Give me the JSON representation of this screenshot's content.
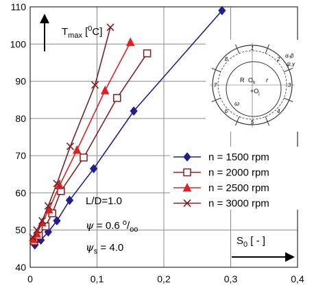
{
  "chart_data": {
    "type": "line",
    "xlim": [
      0,
      0.4
    ],
    "ylim": [
      40,
      110
    ],
    "x_ticks": [
      "0",
      "0,1",
      "0,2",
      "0,3",
      "0,4"
    ],
    "y_ticks": [
      "40",
      "50",
      "60",
      "70",
      "80",
      "90",
      "100",
      "110"
    ],
    "grid": true,
    "ylabel": {
      "main": "T",
      "sub": "max",
      "rest": " [",
      "sup": "0",
      "unit": "C]"
    },
    "xlabel": {
      "main": "S",
      "sub": "0",
      "rest": " [ - ]"
    },
    "legend_position": "center-right",
    "series": [
      {
        "name": "n = 1500 rpm",
        "color": "#1f1f8f",
        "marker": "diamond",
        "x": [
          0.007,
          0.016,
          0.027,
          0.04,
          0.059,
          0.095,
          0.155,
          0.287
        ],
        "y": [
          46,
          47.3,
          49.5,
          52.5,
          58,
          66.5,
          82,
          109
        ]
      },
      {
        "name": "n = 2000 rpm",
        "color": "#8b1a1a",
        "marker": "square-open",
        "x": [
          0.006,
          0.013,
          0.023,
          0.033,
          0.046,
          0.08,
          0.13,
          0.175
        ],
        "y": [
          47,
          48.5,
          51,
          54.5,
          60.5,
          69.5,
          85.5,
          97.5
        ]
      },
      {
        "name": "n = 2500 rpm",
        "color": "#e02020",
        "marker": "triangle",
        "x": [
          0.005,
          0.01,
          0.018,
          0.028,
          0.044,
          0.07,
          0.112,
          0.15
        ],
        "y": [
          47.5,
          49,
          52,
          55.5,
          62,
          71.5,
          87.5,
          100.5
        ]
      },
      {
        "name": "n = 3000 rpm",
        "color": "#7a2020",
        "marker": "x",
        "x": [
          0.004,
          0.01,
          0.018,
          0.027,
          0.04,
          0.06,
          0.097,
          0.12
        ],
        "y": [
          48,
          50,
          52.5,
          56.5,
          62.5,
          72.5,
          89,
          104.5
        ]
      }
    ],
    "annotations": {
      "ld": "L/D=1.0",
      "psi": {
        "symbol": "ψ",
        "value": " = 0.6 ",
        "sup": "o",
        "slash": "/",
        "sub": "oo"
      },
      "psi_s": {
        "symbol": "ψ",
        "sub": "s",
        "value": " = 4.0"
      }
    },
    "bearing_labels": {
      "numbers": [
        "1",
        "2",
        "3",
        "4",
        "5",
        "6",
        "7",
        "8"
      ],
      "alpha": "αₙβ",
      "psi_y": "ψ,γ",
      "R": "R",
      "Ob": "O",
      "Ob_sub": "b",
      "Oj": "+O",
      "Oj_sub": "j",
      "r": "r",
      "omega": "ω"
    }
  }
}
